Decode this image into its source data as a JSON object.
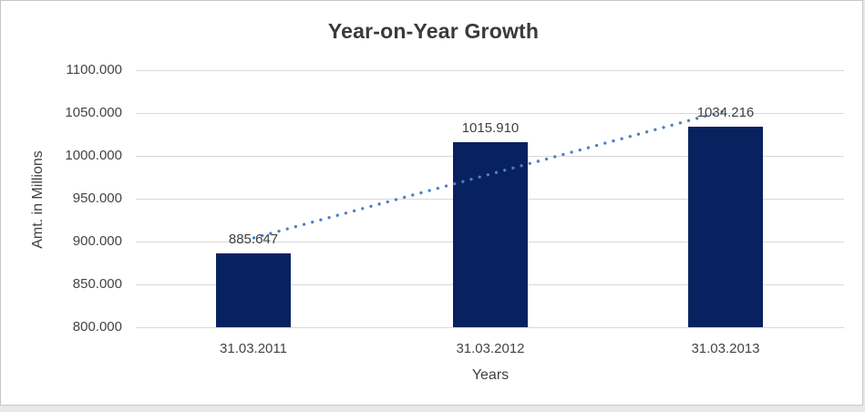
{
  "chart": {
    "title": "Year-on-Year Growth",
    "y_axis_title": "Amt. in Millions",
    "x_axis_title": "Years",
    "yticks": [
      "1100.000",
      "1050.000",
      "1000.000",
      "950.000",
      "900.000",
      "850.000",
      "800.000"
    ],
    "data_labels": [
      "885.647",
      "1015.910",
      "1034.216"
    ]
  },
  "chart_data": {
    "type": "bar",
    "title": "Year-on-Year Growth",
    "categories": [
      "31.03.2011",
      "31.03.2012",
      "31.03.2013"
    ],
    "series": [
      {
        "name": "Amt. in Millions",
        "values": [
          885.647,
          1015.91,
          1034.216
        ]
      }
    ],
    "xlabel": "Years",
    "ylabel": "Amt. in Millions",
    "ylim": [
      800,
      1100
    ],
    "ytick_interval": 50,
    "grid": true,
    "legend": "none",
    "data_labels_shown": true,
    "trendline": {
      "type": "linear",
      "style": "dotted"
    },
    "colors": {
      "bar": "#07225f",
      "trendline": "#4a80c4",
      "gridline": "#d9d9d9",
      "text": "#404040"
    }
  }
}
